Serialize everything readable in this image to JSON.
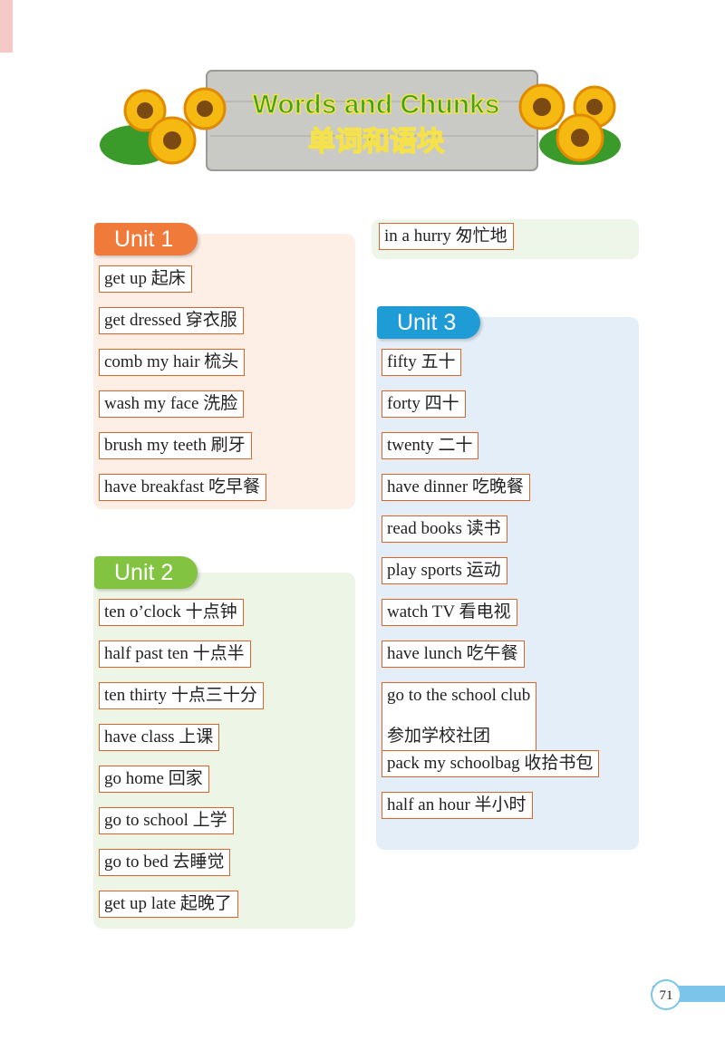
{
  "header": {
    "title": "Words and Chunks",
    "subtitle": "单词和语块"
  },
  "units": [
    {
      "label": "Unit 1",
      "items": [
        [
          "get up 起床"
        ],
        [
          "get dressed 穿衣服"
        ],
        [
          "comb my hair 梳头"
        ],
        [
          "wash my face 洗脸"
        ],
        [
          "brush my teeth 刷牙"
        ],
        [
          "have breakfast 吃早餐"
        ]
      ]
    },
    {
      "label": "Unit 2",
      "items": [
        [
          "ten o’clock 十点钟"
        ],
        [
          "half past ten 十点半"
        ],
        [
          "ten thirty 十点三十分"
        ],
        [
          "have class 上课"
        ],
        [
          "go home 回家"
        ],
        [
          "go to school 上学"
        ],
        [
          "go to bed 去睡觉"
        ],
        [
          "get up late 起晚了"
        ],
        [
          "in a hurry 匆忙地"
        ]
      ]
    },
    {
      "label": "Unit 3",
      "items": [
        [
          "fifty 五十"
        ],
        [
          "forty 四十"
        ],
        [
          "twenty 二十"
        ],
        [
          "have dinner 吃晚餐"
        ],
        [
          "read books 读书"
        ],
        [
          "play sports 运动"
        ],
        [
          "watch TV 看电视"
        ],
        [
          "have lunch 吃午餐"
        ],
        [
          "go to the school club",
          "参加学校社团"
        ],
        [
          "pack my schoolbag 收拾书包"
        ],
        [
          "half an hour 半小时"
        ]
      ]
    }
  ],
  "page_number": "71"
}
